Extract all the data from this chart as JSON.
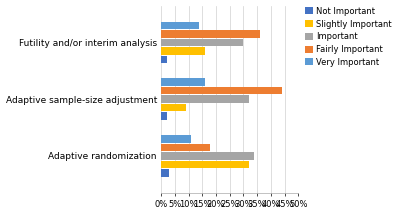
{
  "categories": [
    "Adaptive randomization",
    "Adaptive sample-size adjustment",
    "Futility and/or interim analysis"
  ],
  "legend_labels": [
    "Not Important",
    "Slightly Important",
    "Important",
    "Fairly Important",
    "Very Important"
  ],
  "colors": [
    "#4472C4",
    "#FFC000",
    "#A5A5A5",
    "#ED7D31",
    "#5B9BD5"
  ],
  "values": [
    [
      3,
      32,
      34,
      18,
      11
    ],
    [
      2,
      9,
      32,
      44,
      16
    ],
    [
      2,
      16,
      30,
      36,
      14
    ]
  ],
  "xlim": [
    0,
    50
  ],
  "xtick_labels": [
    "0%",
    "5%",
    "10%",
    "15%",
    "20%",
    "25%",
    "30%",
    "35%",
    "40%",
    "45%",
    "50%"
  ],
  "xtick_values": [
    0,
    5,
    10,
    15,
    20,
    25,
    30,
    35,
    40,
    45,
    50
  ],
  "background_color": "#FFFFFF",
  "label_fontsize": 6.5,
  "tick_fontsize": 6.0
}
